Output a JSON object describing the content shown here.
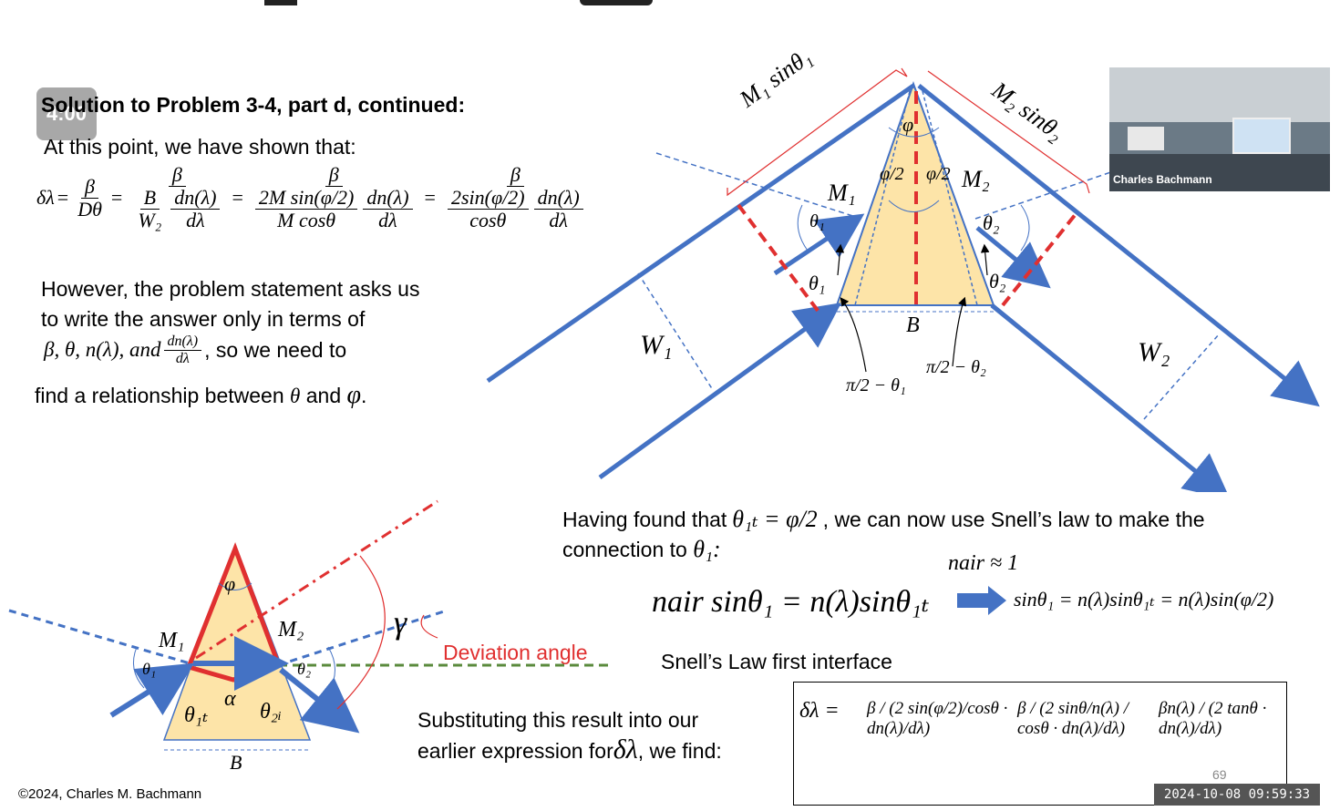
{
  "header": {
    "title": "Solution to Problem 3-4, part d, continued:"
  },
  "timer": {
    "label": "4:00"
  },
  "intro": {
    "line": "At this point, we have shown that:"
  },
  "eq1": {
    "lhs": "δλ",
    "eq": "=",
    "f1_num": "β",
    "f1_den": "Dθ",
    "f2_num": "β",
    "f2_den_a": "B",
    "f2_den_b": "W₂",
    "f2_den_c": "dn(λ)",
    "f2_den_d": "dλ",
    "f3_num": "β",
    "f3_den_a": "2M sin(φ/2)",
    "f3_den_b": "M cosθ",
    "f3_den_c": "dn(λ)",
    "f3_den_d": "dλ",
    "f4_num": "β",
    "f4_den_a": "2sin(φ/2)",
    "f4_den_b": "cosθ",
    "f4_den_c": "dn(λ)",
    "f4_den_d": "dλ"
  },
  "para": {
    "line1": "However, the problem statement asks us",
    "line2": "to write the answer only in terms of",
    "line3_math": "β, θ, n(λ), and",
    "line3_frac_num": "dn(λ)",
    "line3_frac_den": "dλ",
    "line3_tail": ", so we need to",
    "line4": "find a relationship between",
    "line4_theta": "θ",
    "line4_and": "and",
    "line4_phi": "φ",
    "line4_end": "."
  },
  "diagram_top": {
    "m1sin": "M₁ sinθ₁",
    "m2sin": "M₂ sinθ₂",
    "phi": "φ",
    "phi_half_l": "φ/2",
    "phi_half_r": "φ/2",
    "M1": "M₁",
    "M2": "M₂",
    "theta1_a": "θ₁",
    "theta1_b": "θ₁",
    "theta2_a": "θ₂",
    "theta2_b": "θ₂",
    "B": "B",
    "W1": "W₁",
    "W2": "W₂",
    "pi2_theta1": "π/2 − θ₁",
    "pi2_theta2": "π/2 − θ₂"
  },
  "snell": {
    "text_a": "Having found that",
    "theta1t": "θ₁ₜ = φ/2",
    "text_b": ", we can now use Snell’s law to make the",
    "text_c": "connection to",
    "theta1": "θ₁:",
    "nair_approx": "nair ≈ 1",
    "main_eq": "nair sinθ₁ = n(λ)sinθ₁ₜ",
    "result_eq": "sinθ₁ = n(λ)sinθ₁ₜ = n(λ)sin(φ/2)",
    "caption": "Snell’s Law first interface"
  },
  "diagram_bottom": {
    "phi": "φ",
    "M1": "M₁",
    "M2": "M₂",
    "gamma": "γ",
    "deviation": "Deviation angle",
    "theta1": "θ₁",
    "theta2": "θ₂",
    "alpha": "α",
    "theta1t": "θ₁ₜ",
    "theta2i": "θ₂ᵢ",
    "B": "B"
  },
  "subst": {
    "line1": "Substituting this result into our",
    "line2a": "earlier expression for",
    "line2_sym": "δλ",
    "line2b": ", we find:"
  },
  "final_eq": {
    "lhs": "δλ =",
    "f1": "β / (2 sin(φ/2)/cosθ · dn(λ)/dλ)",
    "f2": "β / (2 sinθ/n(λ) / cosθ · dn(λ)/dλ)",
    "f3": "βn(λ) / (2 tanθ · dn(λ)/dλ)"
  },
  "footer": {
    "copyright": "©2024, Charles M. Bachmann",
    "page": "69",
    "timestamp": "2024-10-08  09:59:33"
  },
  "video": {
    "name": "Charles Bachmann"
  },
  "colors": {
    "blue": "#4472c4",
    "red": "#e03030",
    "prism": "#fde4a8",
    "green": "#5a8a3c"
  }
}
